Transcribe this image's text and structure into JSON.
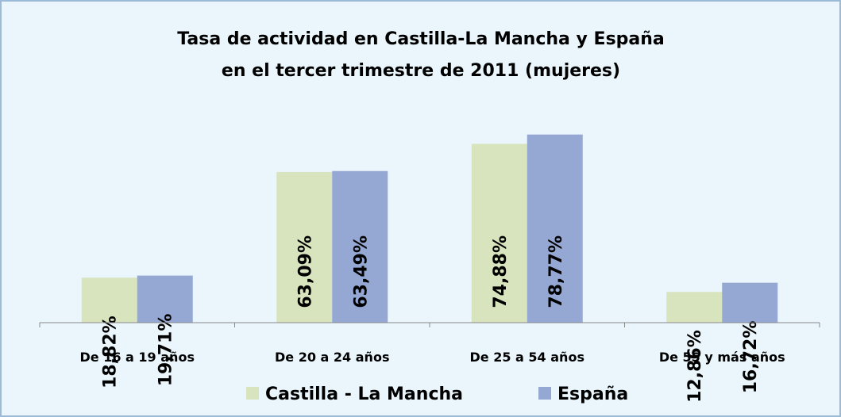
{
  "chart_data": {
    "type": "bar",
    "title": [
      "Tasa de actividad en Castilla-La Mancha y España",
      "en el tercer trimestre de 2011 (mujeres)"
    ],
    "categories": [
      "De 16 a 19 años",
      "De 20 a 24 años",
      "De 25 a 54 años",
      "De 55 y más años"
    ],
    "series": [
      {
        "name": "Castilla - La Mancha",
        "color": "#d7e4bd",
        "values": [
          18.82,
          63.09,
          74.88,
          12.86
        ],
        "value_labels": [
          "18,82%",
          "63,09%",
          "74,88%",
          "12,86%"
        ]
      },
      {
        "name": "España",
        "color": "#95a8d3",
        "values": [
          19.71,
          63.49,
          78.77,
          16.72
        ],
        "value_labels": [
          "19,71%",
          "63,49%",
          "78,77%",
          "16,72%"
        ]
      }
    ],
    "ylim": [
      0,
      80
    ],
    "legend": "bottom"
  }
}
